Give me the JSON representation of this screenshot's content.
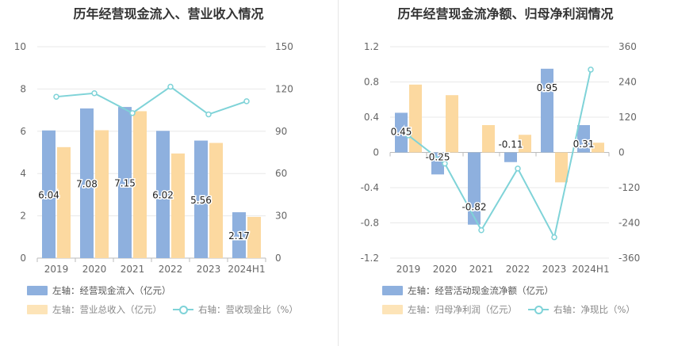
{
  "colors": {
    "bar1": "#8eb0de",
    "bar2": "#fcd9a0",
    "line": "#7fd3d8",
    "grid": "#e8e8e8",
    "axis_text": "#666666"
  },
  "chart_data": [
    {
      "type": "bar",
      "title": "历年经营现金流入、营业收入情况",
      "categories": [
        "2019",
        "2020",
        "2021",
        "2022",
        "2023",
        "2024H1"
      ],
      "left_ylim": [
        0,
        10
      ],
      "left_ticks": [
        "0",
        "2",
        "4",
        "6",
        "8",
        "10"
      ],
      "right_ylim": [
        0,
        150
      ],
      "right_ticks": [
        "0",
        "30",
        "60",
        "90",
        "120",
        "150"
      ],
      "series": [
        {
          "name": "左轴：经营现金流入（亿元）",
          "axis": "left",
          "kind": "bar",
          "values": [
            6.04,
            7.08,
            7.15,
            6.02,
            5.56,
            2.17
          ],
          "labels": [
            "6.04",
            "7.08",
            "7.15",
            "6.02",
            "5.56",
            "2.17"
          ]
        },
        {
          "name": "左轴：营业总收入（亿元）",
          "axis": "left",
          "kind": "bar",
          "values": [
            5.25,
            6.05,
            6.95,
            4.95,
            5.45,
            1.95
          ]
        },
        {
          "name": "右轴：营收现金比（%）",
          "axis": "right",
          "kind": "line",
          "values": [
            114.5,
            117.0,
            102.9,
            121.6,
            102.0,
            111.3
          ]
        }
      ]
    },
    {
      "type": "bar",
      "title": "历年经营现金流净额、归母净利润情况",
      "categories": [
        "2019",
        "2020",
        "2021",
        "2022",
        "2023",
        "2024H1"
      ],
      "left_ylim": [
        -1.2,
        1.2
      ],
      "left_ticks": [
        "-1.2",
        "-0.8",
        "-0.4",
        "0",
        "0.4",
        "0.8",
        "1.2"
      ],
      "right_ylim": [
        -360,
        360
      ],
      "right_ticks": [
        "-360",
        "-240",
        "-120",
        "0",
        "120",
        "240",
        "360"
      ],
      "series": [
        {
          "name": "左轴：经营活动现金流净额（亿元）",
          "axis": "left",
          "kind": "bar",
          "values": [
            0.45,
            -0.25,
            -0.82,
            -0.11,
            0.95,
            0.31
          ],
          "labels": [
            "0.45",
            "-0.25",
            "-0.82",
            "-0.11",
            "0.95",
            "0.31"
          ]
        },
        {
          "name": "左轴：归母净利润（亿元）",
          "axis": "left",
          "kind": "bar",
          "values": [
            0.77,
            0.65,
            0.31,
            0.2,
            -0.34,
            0.11
          ]
        },
        {
          "name": "右轴：净现比（%）",
          "axis": "right",
          "kind": "line",
          "values": [
            58,
            -38,
            -265,
            -55,
            -289,
            282
          ]
        }
      ]
    }
  ]
}
